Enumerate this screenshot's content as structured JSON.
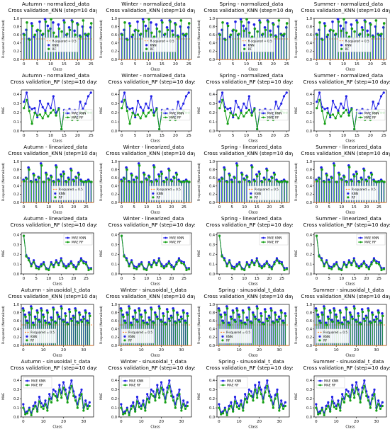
{
  "season_titles": [
    "Autumn",
    "Winter",
    "Spring",
    "Summer"
  ],
  "row_headers": [
    {
      "dataset": "normalized_data",
      "method": "Cross validation_KNN (step=10 days)",
      "kind": "r2"
    },
    {
      "dataset": "normalized_data",
      "method": "Cross validation_RF (step=10 days)",
      "kind": "mae"
    },
    {
      "dataset": "linearized_data",
      "method": "Cross validation_KNN (step=10 days)",
      "kind": "r2"
    },
    {
      "dataset": "linearized_data",
      "method": "Cross validation_RF (step=10 days)",
      "kind": "mae"
    },
    {
      "dataset": "sinusoidal_t_data",
      "method": "Cross validation_KNN (step=10 days)",
      "kind": "r2"
    },
    {
      "dataset": "sinusoidal_t_data",
      "method": "Cross validation_RF (step=10 days)",
      "kind": "mae"
    }
  ],
  "axis_labels": {
    "x": "Class",
    "y_r2": "R-squared (Normalized)",
    "y_mae": "MAE"
  },
  "legend": {
    "r2_threshold": "R-squared = 0.5",
    "knn": "KNN",
    "rf": "RF",
    "mae_knn": "MAE KNN",
    "mae_rf": "MAE RF"
  },
  "colors": {
    "knn": "#1f1fe6",
    "rf": "#16a016",
    "threshold": "#ff6a00",
    "axis": "#000000"
  },
  "chart_data": [
    {
      "type": "stem",
      "dataset": "normalized_data",
      "method": "KNN",
      "xlim": [
        -1,
        26
      ],
      "ylim": [
        0,
        1
      ],
      "xticks": [
        0,
        5,
        10,
        15,
        20,
        25
      ],
      "yticks": [
        0.0,
        0.2,
        0.4,
        0.6,
        0.8,
        1.0
      ],
      "threshold": 0.5,
      "legend_position": "center",
      "series": [
        {
          "name": "KNN",
          "values": [
            0.62,
            0.72,
            0.5,
            0.88,
            0.55,
            0.7,
            0.92,
            0.6,
            0.98,
            0.82,
            0.75,
            0.9,
            0.52,
            0.85,
            0.5,
            0.95,
            0.6,
            0.78,
            0.95,
            0.7,
            0.88,
            0.58,
            0.8,
            0.62,
            0.58,
            0.78
          ]
        },
        {
          "name": "RF",
          "values": [
            0.6,
            0.9,
            0.48,
            0.82,
            0.6,
            0.72,
            0.7,
            0.62,
            0.92,
            0.7,
            0.98,
            0.65,
            0.55,
            0.75,
            0.68,
            0.9,
            0.62,
            0.72,
            0.92,
            0.6,
            0.85,
            0.55,
            0.95,
            0.6,
            0.62,
            0.88
          ]
        }
      ]
    },
    {
      "type": "line",
      "dataset": "normalized_data",
      "method": "RF",
      "xlim": [
        -1,
        26
      ],
      "ylim": [
        0,
        0.45
      ],
      "xticks": [
        0,
        5,
        10,
        15,
        20,
        25
      ],
      "yticks": [
        0.0,
        0.1,
        0.2,
        0.3,
        0.4
      ],
      "legend_position": "center-right",
      "series": [
        {
          "name": "MAE KNN",
          "values": [
            0.32,
            0.42,
            0.26,
            0.24,
            0.25,
            0.15,
            0.33,
            0.26,
            0.22,
            0.3,
            0.25,
            0.38,
            0.2,
            0.25,
            0.02,
            0.23,
            0.22,
            0.24,
            0.21,
            0.23,
            0.16,
            0.32,
            0.24,
            0.3,
            0.38,
            0.42
          ]
        },
        {
          "name": "MAE RF",
          "values": [
            0.25,
            0.34,
            0.22,
            0.08,
            0.2,
            0.17,
            0.18,
            0.14,
            0.2,
            0.16,
            0.2,
            0.23,
            0.17,
            0.24,
            0.02,
            0.2,
            0.18,
            0.19,
            0.12,
            0.16,
            0.12,
            0.21,
            0.19,
            0.22,
            0.2,
            0.2
          ]
        }
      ]
    },
    {
      "type": "stem",
      "dataset": "linearized_data",
      "method": "KNN",
      "xlim": [
        -1,
        28
      ],
      "ylim": [
        0,
        1
      ],
      "xticks": [
        0,
        5,
        10,
        15,
        20,
        25
      ],
      "yticks": [
        0.0,
        0.2,
        0.4,
        0.6,
        0.8,
        1.0
      ],
      "threshold": 0.5,
      "legend_position": "lower-right",
      "series": [
        {
          "name": "KNN",
          "values": [
            0.55,
            0.6,
            0.85,
            0.52,
            0.7,
            0.55,
            0.62,
            0.95,
            0.5,
            0.72,
            0.58,
            0.65,
            0.52,
            0.9,
            0.55,
            0.68,
            0.75,
            0.52,
            0.6,
            0.82,
            0.55,
            0.62,
            0.72,
            0.55,
            0.5,
            0.52,
            0.55,
            0.5
          ]
        },
        {
          "name": "RF",
          "values": [
            0.52,
            0.58,
            0.8,
            0.5,
            0.66,
            0.5,
            0.6,
            0.9,
            0.5,
            0.68,
            0.55,
            0.62,
            0.5,
            0.86,
            0.52,
            0.64,
            0.7,
            0.5,
            0.56,
            0.78,
            0.52,
            0.6,
            0.68,
            0.52,
            0.5,
            0.5,
            0.52,
            0.5
          ]
        }
      ]
    },
    {
      "type": "line",
      "dataset": "linearized_data",
      "method": "RF",
      "xlim": [
        -1,
        28
      ],
      "ylim": [
        0,
        0.42
      ],
      "xticks": [
        0,
        5,
        10,
        15,
        20,
        25
      ],
      "yticks": [
        0.0,
        0.1,
        0.2,
        0.3,
        0.4
      ],
      "legend_position": "upper-right",
      "series": [
        {
          "name": "MAE KNN",
          "values": [
            0.39,
            0.19,
            0.16,
            0.1,
            0.14,
            0.08,
            0.07,
            0.1,
            0.12,
            0.06,
            0.05,
            0.12,
            0.09,
            0.14,
            0.11,
            0.16,
            0.1,
            0.08,
            0.1,
            0.13,
            0.09,
            0.07,
            0.12,
            0.16,
            0.13,
            0.12,
            0.06,
            0.06
          ]
        },
        {
          "name": "MAE RF",
          "values": [
            0.39,
            0.18,
            0.14,
            0.08,
            0.12,
            0.06,
            0.05,
            0.08,
            0.1,
            0.05,
            0.04,
            0.1,
            0.07,
            0.12,
            0.09,
            0.14,
            0.08,
            0.06,
            0.08,
            0.11,
            0.07,
            0.05,
            0.1,
            0.14,
            0.11,
            0.1,
            0.04,
            0.05
          ]
        }
      ]
    },
    {
      "type": "stem",
      "dataset": "sinusoidal_t_data",
      "method": "KNN",
      "xlim": [
        -1,
        35
      ],
      "ylim": [
        0,
        1
      ],
      "xticks": [
        0,
        10,
        20,
        30
      ],
      "yticks": [
        0.0,
        0.2,
        0.4,
        0.6,
        0.8,
        1.0
      ],
      "threshold": 0.5,
      "legend_position": "lower-left",
      "series": [
        {
          "name": "KNN",
          "values": [
            0.9,
            0.75,
            0.6,
            0.8,
            0.95,
            0.55,
            0.7,
            0.85,
            0.62,
            0.9,
            0.75,
            0.6,
            0.85,
            0.55,
            0.68,
            0.92,
            0.58,
            0.8,
            0.7,
            0.95,
            0.62,
            0.78,
            0.55,
            0.88,
            0.65,
            0.72,
            0.9,
            0.58,
            0.8,
            0.62,
            0.7,
            0.85,
            0.6,
            0.78
          ]
        },
        {
          "name": "RF",
          "values": [
            0.85,
            0.7,
            0.55,
            0.75,
            0.9,
            0.5,
            0.65,
            0.8,
            0.58,
            0.85,
            0.7,
            0.55,
            0.8,
            0.52,
            0.62,
            0.88,
            0.55,
            0.75,
            0.65,
            0.9,
            0.58,
            0.72,
            0.52,
            0.82,
            0.6,
            0.68,
            0.85,
            0.55,
            0.75,
            0.58,
            0.65,
            0.8,
            0.55,
            0.72
          ]
        }
      ]
    },
    {
      "type": "line",
      "dataset": "sinusoidal_t_data",
      "method": "RF",
      "xlim": [
        -1,
        35
      ],
      "ylim": [
        0,
        0.45
      ],
      "xticks": [
        0,
        10,
        20,
        30
      ],
      "yticks": [
        0.0,
        0.1,
        0.2,
        0.3,
        0.4
      ],
      "legend_position": "upper-left",
      "series": [
        {
          "name": "MAE KNN",
          "values": [
            0.14,
            0.05,
            0.06,
            0.1,
            0.04,
            0.12,
            0.16,
            0.08,
            0.22,
            0.15,
            0.12,
            0.18,
            0.1,
            0.25,
            0.2,
            0.3,
            0.28,
            0.22,
            0.35,
            0.26,
            0.38,
            0.3,
            0.2,
            0.32,
            0.4,
            0.28,
            0.22,
            0.14,
            0.24,
            0.3,
            0.1,
            0.18,
            0.12,
            0.16
          ]
        },
        {
          "name": "MAE RF",
          "values": [
            0.1,
            0.03,
            0.04,
            0.08,
            0.02,
            0.09,
            0.12,
            0.06,
            0.17,
            0.11,
            0.09,
            0.14,
            0.07,
            0.2,
            0.16,
            0.25,
            0.23,
            0.18,
            0.3,
            0.21,
            0.32,
            0.25,
            0.16,
            0.27,
            0.34,
            0.23,
            0.18,
            0.1,
            0.2,
            0.25,
            0.07,
            0.14,
            0.09,
            0.12
          ]
        }
      ]
    }
  ]
}
